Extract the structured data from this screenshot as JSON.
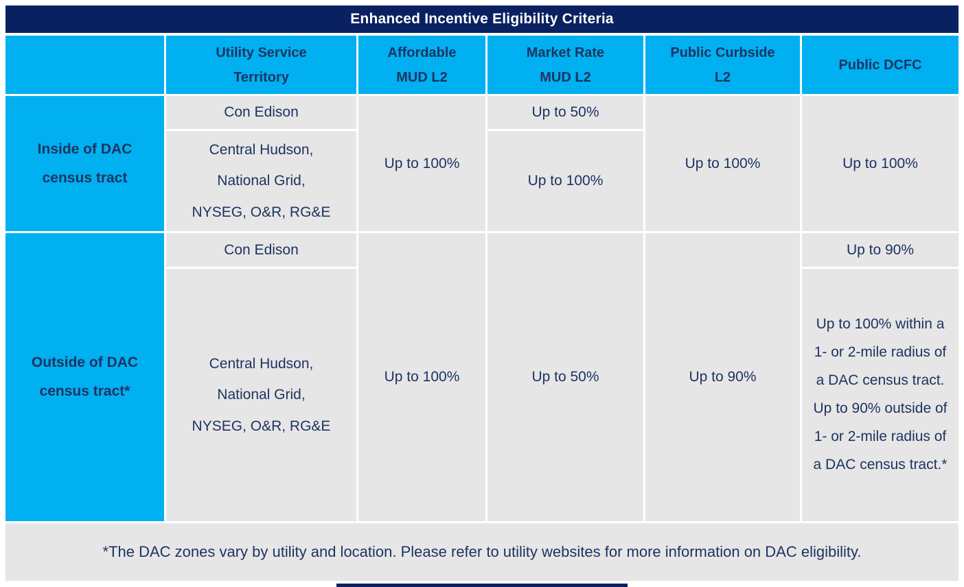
{
  "title": "Enhanced Incentive Eligibility Criteria",
  "colors": {
    "title_bar": "#0A2161",
    "header_fill": "#00B0F0",
    "cell_fill": "#E7E6E6",
    "text_navy": "#1C3461",
    "title_text": "#FFFFFF"
  },
  "table": {
    "headers": {
      "utility": "Utility Service\nTerritory",
      "affordable": "Affordable\nMUD L2",
      "market": "Market Rate\nMUD L2",
      "curbside": "Public Curbside\nL2",
      "dcfc": "Public DCFC"
    },
    "inside": {
      "label": "Inside of DAC\ncensus tract",
      "utility_row1": "Con Edison",
      "utility_row2": "Central Hudson,\nNational Grid,\nNYSEG, O&R, RG&E",
      "affordable": "Up to 100%",
      "market_row1": "Up to 50%",
      "market_row2": "Up to 100%",
      "curbside": "Up to 100%",
      "dcfc": "Up to 100%"
    },
    "outside": {
      "label": "Outside of DAC\ncensus tract*",
      "utility_row1": "Con Edison",
      "utility_row2": "Central Hudson,\nNational Grid,\nNYSEG, O&R, RG&E",
      "affordable": "Up to 100%",
      "market": "Up to 50%",
      "curbside": "Up to 90%",
      "dcfc_row1": "Up to 90%",
      "dcfc_row2": "Up to 100% within a 1- or 2-mile radius of a DAC census tract. Up to 90% outside of 1- or 2-mile radius of a DAC census tract.*"
    }
  },
  "footnote": "*The DAC zones vary by utility and location. Please refer to utility websites for more information on DAC eligibility."
}
